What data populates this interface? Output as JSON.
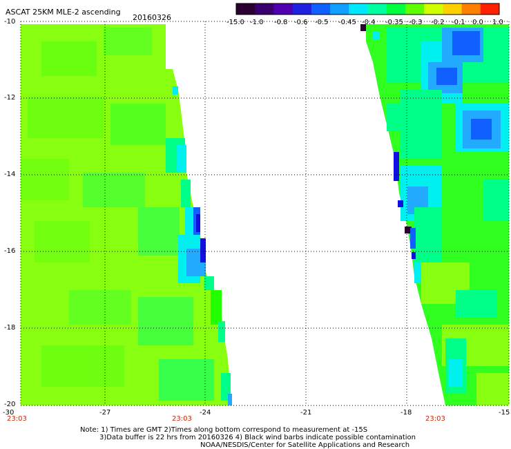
{
  "header": {
    "title": "ASCAT 25KM MLE-2 ascending",
    "date": "20160326"
  },
  "colorbar": {
    "ticks": [
      "-15.0",
      "-1.0",
      "-0.8",
      "-0.6",
      "-0.5",
      "-0.45",
      "-0.4",
      "-0.35",
      "-0.3",
      "-0.2",
      "-0.1",
      "0.0",
      "1.0"
    ],
    "colors": [
      "#2a0030",
      "#3a0070",
      "#5000b0",
      "#2020e0",
      "#1060ff",
      "#10a0ff",
      "#00e8ff",
      "#00ffa0",
      "#00ff40",
      "#60ff00",
      "#d0ff00",
      "#ffd000",
      "#ff8000",
      "#ff2000"
    ]
  },
  "y_axis": {
    "ticks": [
      "-10",
      "-12",
      "-14",
      "-16",
      "-18",
      "-20"
    ]
  },
  "x_axis": {
    "ticks": [
      "-30",
      "-27",
      "-24",
      "-21",
      "-18",
      "-15"
    ]
  },
  "time_labels": [
    "23:03",
    "23:03",
    "23:03"
  ],
  "notes": {
    "line1": "Note: 1) Times are GMT 2)Times along bottom correspond to measurement at -15S",
    "line2": "3)Data buffer is 22 hrs from 20160326 4) Black wind barbs indicate possible contamination",
    "line3": "NOAA/NESDIS/Center for Satellite Applications and Research"
  },
  "map": {
    "lat_range": [
      -20,
      -10
    ],
    "lon_range": [
      -30,
      -15
    ],
    "colors": {
      "base_green": "#88ff10",
      "green": "#22ff00",
      "cyan_green": "#00ff88",
      "cyan": "#00f0f0",
      "blue_light": "#22aaff",
      "blue": "#1060ff",
      "deep_blue": "#1010e0",
      "dark": "#2a0030"
    }
  }
}
